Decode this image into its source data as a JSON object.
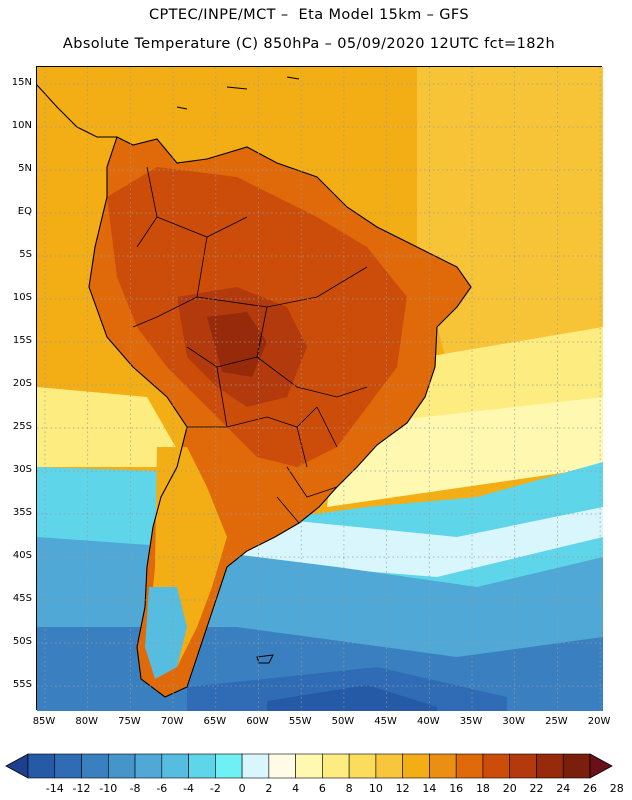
{
  "title": {
    "line1": "CPTEC/INPE/MCT –  Eta Model 15km – GFS",
    "line2": "Absolute Temperature (C) 850hPa – 05/09/2020 12UTC fct=182h"
  },
  "latitude_labels": [
    "15N",
    "10N",
    "5N",
    "EQ",
    "5S",
    "10S",
    "15S",
    "20S",
    "25S",
    "30S",
    "35S",
    "40S",
    "45S",
    "50S",
    "55S"
  ],
  "longitude_labels": [
    "85W",
    "80W",
    "75W",
    "70W",
    "65W",
    "60W",
    "55W",
    "50W",
    "45W",
    "40W",
    "35W",
    "30W",
    "25W",
    "20W"
  ],
  "colorbar": {
    "labels": [
      "-14",
      "-12",
      "-10",
      "-8",
      "-6",
      "-4",
      "-2",
      "0",
      "2",
      "4",
      "6",
      "8",
      "10",
      "12",
      "14",
      "16",
      "18",
      "20",
      "22",
      "24",
      "26",
      "28"
    ],
    "colors": [
      "#1e3f8f",
      "#255aa6",
      "#2f6cb5",
      "#3a80c0",
      "#4595cb",
      "#4fa8d6",
      "#56bde0",
      "#5fd5ea",
      "#6ff0f4",
      "#d8f6fb",
      "#fffbe6",
      "#fff8b0",
      "#fdec80",
      "#fbdc5c",
      "#f7c63c",
      "#f2ae14",
      "#eb8e14",
      "#e06a0a",
      "#cc4d0a",
      "#b33a0c",
      "#962a0a",
      "#7a1f0c",
      "#6a1018"
    ]
  },
  "palette": {
    "ocean_tropical": "#f2ae14",
    "ocean_light": "#f7c63c",
    "land_warm": "#e06a0a",
    "land_hot": "#b33a0c",
    "land_hottest": "#962a0a",
    "cold_light": "#56bde0",
    "cold_mid": "#4595cb",
    "cold_deep": "#2f6cb5",
    "cold_deepest": "#255aa6",
    "pale_yellow": "#fff8b0",
    "pale_cyan": "#d8f6fb",
    "coast": "#000000",
    "grid": "#9a9a9a"
  }
}
